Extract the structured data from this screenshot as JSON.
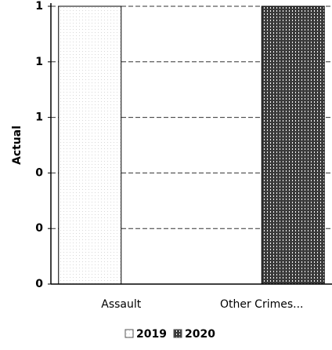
{
  "chart_data": {
    "type": "bar",
    "y_label": "Actual",
    "categories": [
      "Assault",
      "Other Crimes..."
    ],
    "series": [
      {
        "name": "2019",
        "color": "#d8d8d8",
        "values": [
          1,
          0
        ]
      },
      {
        "name": "2020",
        "color": "#3a3a3a",
        "values": [
          0,
          1
        ]
      }
    ],
    "ylim": [
      0,
      1
    ],
    "yticks": [
      0,
      {
        "value": 0.2,
        "label": "0"
      },
      {
        "value": 0.4,
        "label": "0"
      },
      {
        "value": 0.6,
        "label": "1"
      },
      {
        "value": 0.8,
        "label": "1"
      },
      1
    ],
    "grid": true
  }
}
